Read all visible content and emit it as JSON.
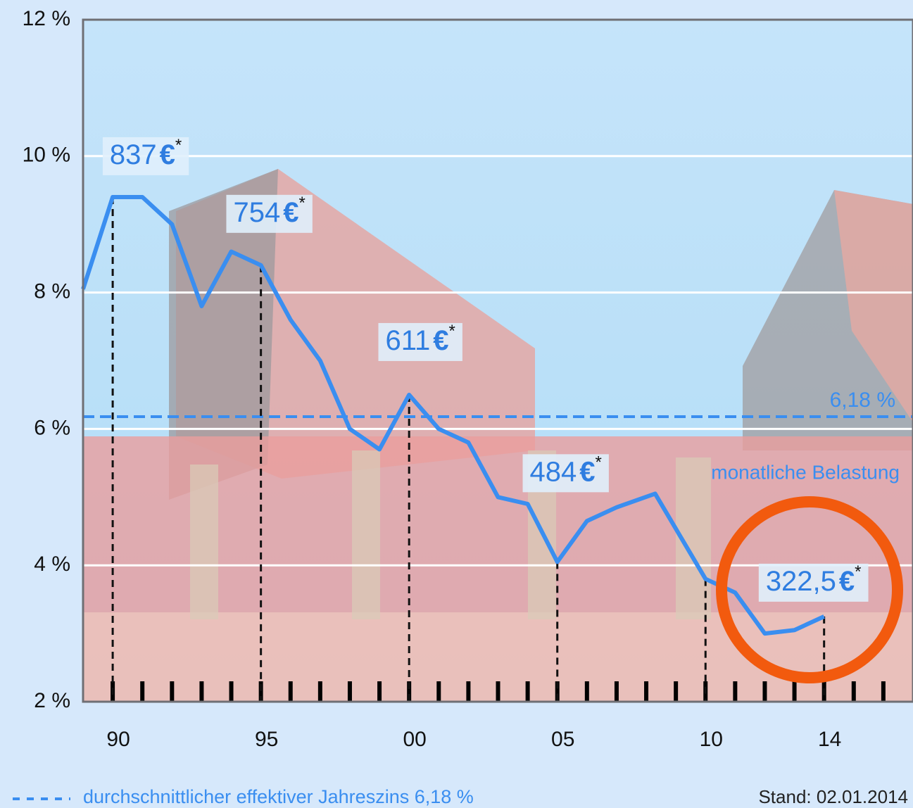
{
  "chart_data": {
    "type": "line",
    "x": [
      1989,
      1990,
      1991,
      1992,
      1993,
      1994,
      1995,
      1996,
      1997,
      1998,
      1999,
      2000,
      2001,
      2002,
      2003,
      2004,
      2005,
      2006,
      2007,
      2008.3,
      2010,
      2011,
      2012,
      2013,
      2014
    ],
    "series": [
      {
        "name": "monatliche Belastung",
        "color": "#3a8ef0",
        "values": [
          8.05,
          9.4,
          9.4,
          9.0,
          7.8,
          8.6,
          8.4,
          7.6,
          7.0,
          6.0,
          5.7,
          6.5,
          6.0,
          5.8,
          5.0,
          4.9,
          4.05,
          4.65,
          4.85,
          5.05,
          3.8,
          3.6,
          3.0,
          3.05,
          3.25
        ]
      }
    ],
    "xlim": [
      1989,
      2017
    ],
    "xticks": [
      {
        "value": 1990,
        "label": "90"
      },
      {
        "value": 1995,
        "label": "95"
      },
      {
        "value": 2000,
        "label": "00"
      },
      {
        "value": 2005,
        "label": "05"
      },
      {
        "value": 2010,
        "label": "10"
      },
      {
        "value": 2014,
        "label": "14"
      }
    ],
    "xminorticks": [
      1990,
      1991,
      1992,
      1993,
      1994,
      1995,
      1996,
      1997,
      1998,
      1999,
      2000,
      2001,
      2002,
      2003,
      2004,
      2005,
      2006,
      2007,
      2008,
      2009,
      2010,
      2011,
      2012,
      2013,
      2014,
      2015,
      2016
    ],
    "ylim": [
      2,
      12
    ],
    "yticks": [
      {
        "value": 2,
        "label": "2 %"
      },
      {
        "value": 4,
        "label": "4 %"
      },
      {
        "value": 6,
        "label": "6 %"
      },
      {
        "value": 8,
        "label": "8 %"
      },
      {
        "value": 10,
        "label": "10 %"
      },
      {
        "value": 12,
        "label": "12 %"
      }
    ],
    "grid": true,
    "average": {
      "value": 6.18,
      "label": "6,18 %",
      "color": "#3a8ef0"
    },
    "drop_lines": [
      {
        "x": 1990,
        "value": 9.4
      },
      {
        "x": 1995,
        "value": 8.4
      },
      {
        "x": 2000,
        "value": 6.5
      },
      {
        "x": 2005,
        "value": 4.05
      },
      {
        "x": 2010,
        "value": 3.8
      },
      {
        "x": 2014,
        "value": 3.25
      }
    ],
    "annotations": [
      {
        "x": 1990,
        "label": "837€*"
      },
      {
        "x": 1995,
        "label": "754€*"
      },
      {
        "x": 2000,
        "label": "611€*"
      },
      {
        "x": 2005,
        "label": "484€*"
      },
      {
        "x": 2014,
        "label": "322,5€*"
      }
    ],
    "legend_note": "durchschnittlicher effektiver Jahreszins 6,18 %",
    "source_note": "Stand: 02.01.2014"
  }
}
